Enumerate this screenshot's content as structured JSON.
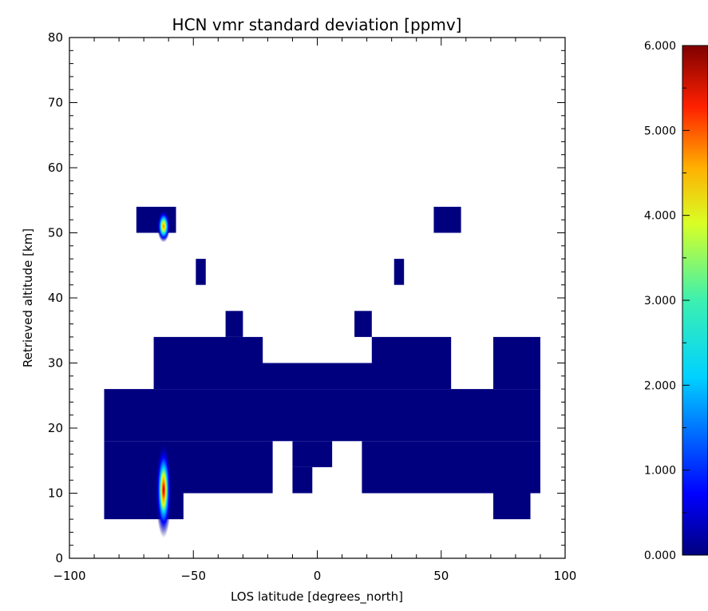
{
  "chart_data": {
    "type": "heatmap",
    "title": "HCN vmr standard deviation [ppmv]",
    "xlabel": "LOS latitude [degrees_north]",
    "ylabel": "Retrieved altitude [km]",
    "xlim": [
      -100,
      100
    ],
    "ylim": [
      0,
      80
    ],
    "x_ticks": [
      -100,
      -50,
      0,
      50,
      100
    ],
    "x_tick_labels": [
      "−100",
      "−50",
      "0",
      "50",
      "100"
    ],
    "y_ticks": [
      0,
      10,
      20,
      30,
      40,
      50,
      60,
      70,
      80
    ],
    "y_tick_labels": [
      "0",
      "10",
      "20",
      "30",
      "40",
      "50",
      "60",
      "70",
      "80"
    ],
    "colorbar": {
      "range": [
        0,
        6
      ],
      "ticks": [
        0,
        1,
        2,
        3,
        4,
        5,
        6
      ],
      "tick_labels": [
        "0.000",
        "1.000",
        "2.000",
        "3.000",
        "4.000",
        "5.000",
        "6.000"
      ],
      "colormap": "rainbow (dark blue to dark red)"
    },
    "background_value": 0.0,
    "fill_color": "#00007f",
    "cells": [
      {
        "lon": [
          -73,
          -57
        ],
        "alt": [
          50,
          54
        ]
      },
      {
        "lon": [
          -49,
          -45
        ],
        "alt": [
          42,
          46
        ]
      },
      {
        "lon": [
          31,
          35
        ],
        "alt": [
          42,
          46
        ]
      },
      {
        "lon": [
          47,
          58
        ],
        "alt": [
          50,
          54
        ]
      },
      {
        "lon": [
          -37,
          -30
        ],
        "alt": [
          34,
          38
        ]
      },
      {
        "lon": [
          15,
          22
        ],
        "alt": [
          34,
          38
        ]
      },
      {
        "lon": [
          -66,
          -22
        ],
        "alt": [
          30,
          34
        ]
      },
      {
        "lon": [
          -22,
          22
        ],
        "alt": [
          30,
          30
        ]
      },
      {
        "lon": [
          22,
          54
        ],
        "alt": [
          30,
          34
        ]
      },
      {
        "lon": [
          71,
          90
        ],
        "alt": [
          30,
          34
        ]
      },
      {
        "lon": [
          -66,
          54
        ],
        "alt": [
          26,
          30
        ]
      },
      {
        "lon": [
          71,
          90
        ],
        "alt": [
          26,
          30
        ]
      },
      {
        "lon": [
          -86,
          90
        ],
        "alt": [
          18,
          26
        ]
      },
      {
        "lon": [
          -86,
          -18
        ],
        "alt": [
          10,
          18
        ]
      },
      {
        "lon": [
          -10,
          6
        ],
        "alt": [
          14,
          18
        ]
      },
      {
        "lon": [
          -10,
          -2
        ],
        "alt": [
          10,
          14
        ]
      },
      {
        "lon": [
          18,
          90
        ],
        "alt": [
          10,
          18
        ]
      },
      {
        "lon": [
          -86,
          -54
        ],
        "alt": [
          6,
          10
        ]
      },
      {
        "lon": [
          71,
          86
        ],
        "alt": [
          6,
          10
        ]
      }
    ],
    "hotspots": [
      {
        "lat": -62,
        "alt": 10.5,
        "peak": 6.0
      },
      {
        "lat": -62,
        "alt": 51,
        "peak": 4.5
      }
    ]
  }
}
